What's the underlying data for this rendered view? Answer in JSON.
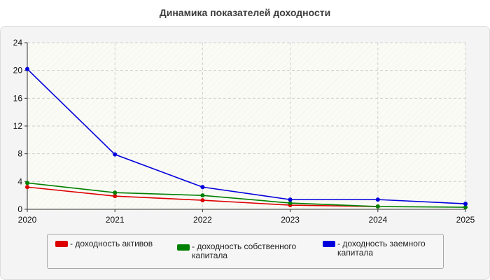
{
  "chart_data": {
    "type": "line",
    "title": "Динамика показателей доходности",
    "x": [
      "2020",
      "2021",
      "2022",
      "2023",
      "2024",
      "2025"
    ],
    "ylim": [
      0,
      24
    ],
    "yticks": [
      "0",
      "4",
      "8",
      "12",
      "16",
      "20",
      "24"
    ],
    "grid": true,
    "legend_position": "bottom",
    "series": [
      {
        "name": "- доходность активов",
        "color": "#dd0000",
        "values": [
          3.2,
          1.9,
          1.3,
          0.6,
          0.4,
          null
        ]
      },
      {
        "name": "- доходность собственного капитала",
        "color": "#008000",
        "values": [
          3.8,
          2.4,
          2.0,
          0.9,
          0.4,
          0.3
        ]
      },
      {
        "name": "- доходность заемного капитала",
        "color": "#0000dd",
        "values": [
          20.2,
          7.9,
          3.2,
          1.4,
          1.4,
          0.8
        ]
      }
    ]
  }
}
